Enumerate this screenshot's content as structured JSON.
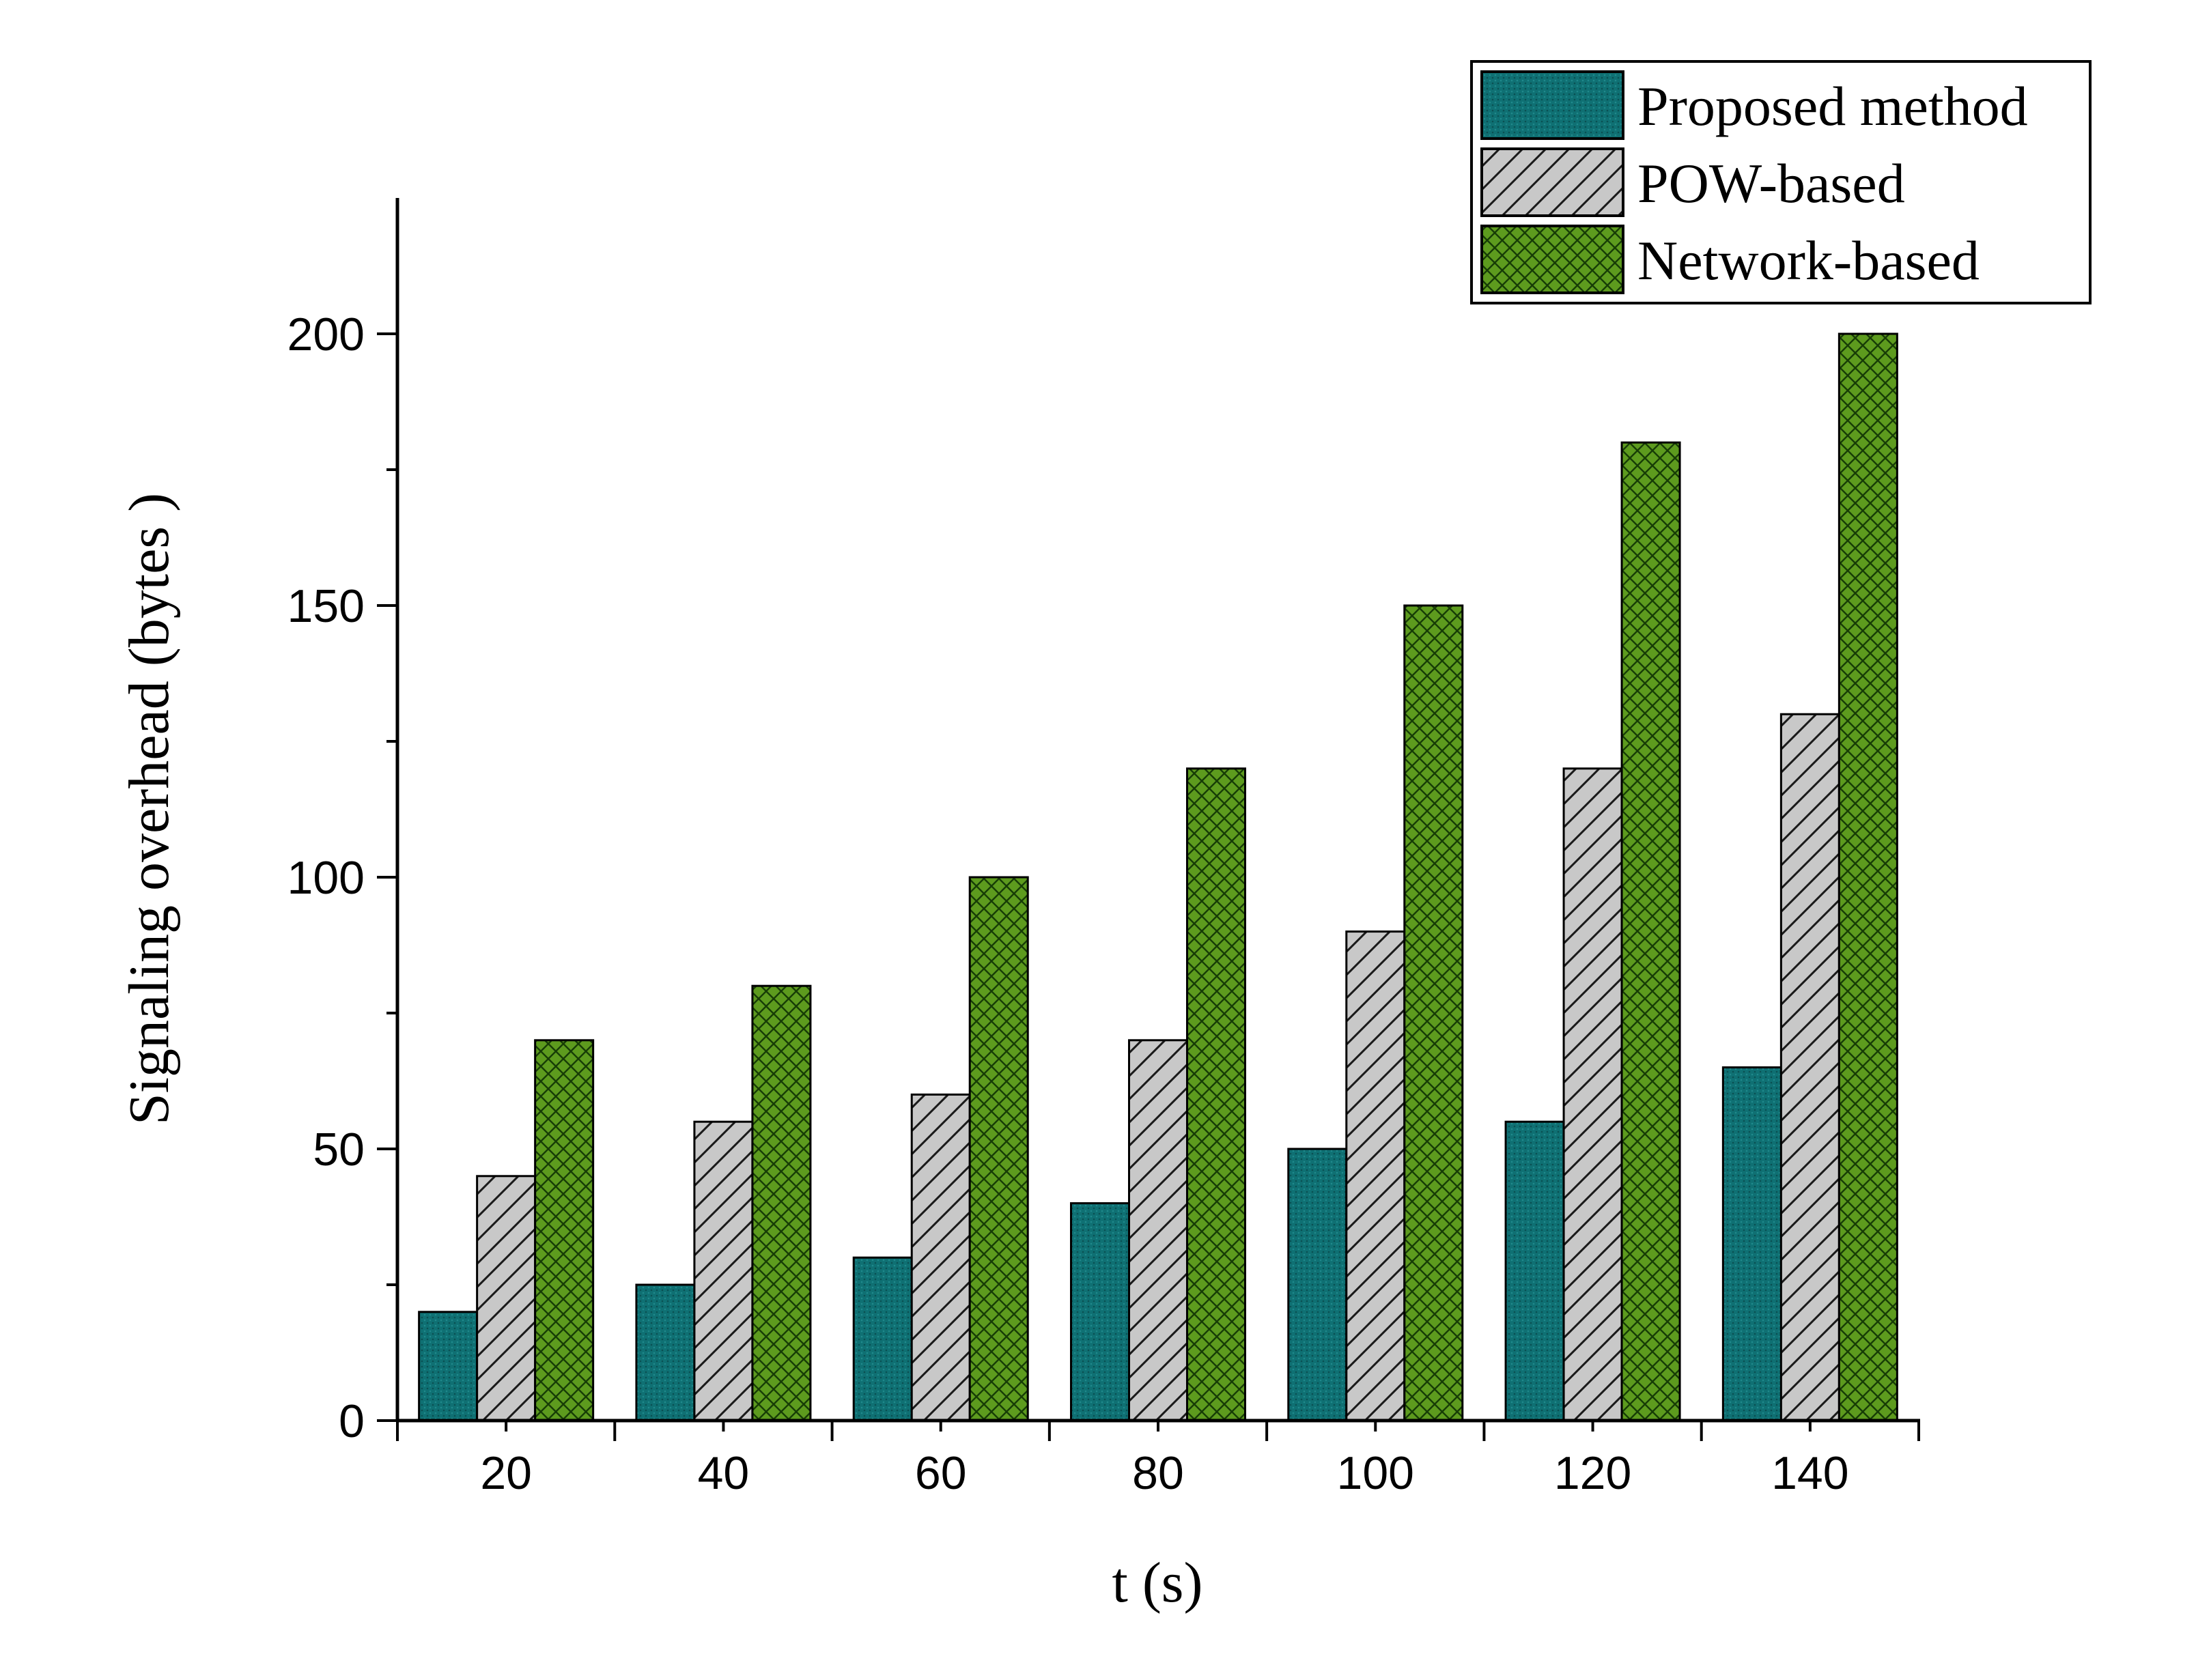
{
  "chart_data": {
    "type": "bar",
    "title": "",
    "xlabel": "t (s)",
    "ylabel": "Signaling overhead (bytes )",
    "categories": [
      "20",
      "40",
      "60",
      "80",
      "100",
      "120",
      "140"
    ],
    "ylim": [
      0,
      225
    ],
    "yticks": [
      "0",
      "50",
      "100",
      "150",
      "200"
    ],
    "grid": false,
    "legend_position": "top-right",
    "series": [
      {
        "name": "Proposed method",
        "values": [
          20,
          25,
          30,
          40,
          50,
          55,
          65
        ],
        "color": "#0f7073",
        "pattern": "fine-dots"
      },
      {
        "name": "POW-based",
        "values": [
          45,
          55,
          60,
          70,
          90,
          120,
          130
        ],
        "color": "#c8c8c8",
        "pattern": "diagonal-lines"
      },
      {
        "name": "Network-based",
        "values": [
          70,
          80,
          100,
          120,
          150,
          180,
          200
        ],
        "color": "#5d9b1e",
        "pattern": "crosshatch"
      }
    ]
  }
}
